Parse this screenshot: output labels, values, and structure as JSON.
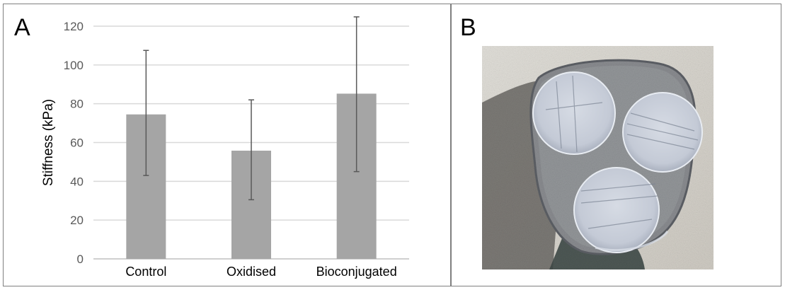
{
  "panels": {
    "a_label": "A",
    "b_label": "B"
  },
  "chart_data": {
    "type": "bar",
    "title": "",
    "xlabel": "",
    "ylabel": "Stiffness (kPa)",
    "categories": [
      "Control",
      "Oxidised",
      "Bioconjugated"
    ],
    "values": [
      74.5,
      55.8,
      85.2
    ],
    "error_bars": [
      {
        "low": 43,
        "high": 107.5
      },
      {
        "low": 30.5,
        "high": 82
      },
      {
        "low": 45,
        "high": 124.8
      }
    ],
    "ylim": [
      0,
      120
    ],
    "y_ticks": [
      "0",
      "20",
      "40",
      "60",
      "80",
      "100",
      "120"
    ],
    "grid": true,
    "legend": "none",
    "bar_color": "#a5a5a5",
    "grid_color": "#d9d9d9",
    "error_color": "#595959"
  },
  "photo": {
    "description_icon": "petri-dish-with-three-gel-discs"
  }
}
